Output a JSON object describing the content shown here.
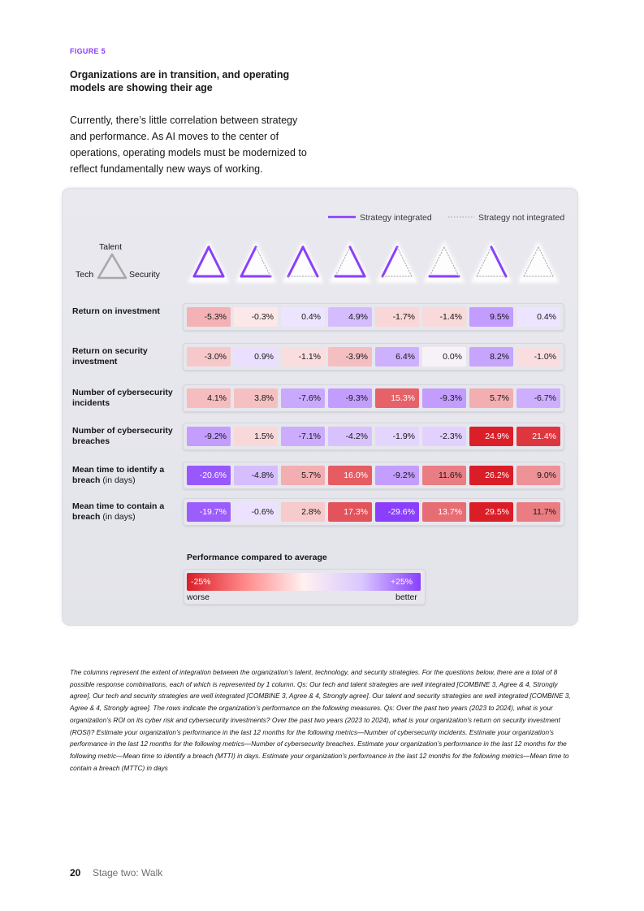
{
  "figure_label": "FIGURE 5",
  "title": "Organizations are in transition, and operating models are showing their age",
  "intro": "Currently, there’s little correlation between strategy and performance. As AI moves to the center of operations, operating models must be modernized to reflect fundamentally new ways of working.",
  "legend": {
    "integrated": "Strategy integrated",
    "not_integrated": "Strategy not integrated"
  },
  "triangle_key": {
    "top": "Talent",
    "left": "Tech",
    "right": "Security"
  },
  "colors": {
    "accent": "#8a3ffc",
    "worse": "#da1e28",
    "better": "#8a3ffc",
    "neutral_line": "#a8a8a8"
  },
  "chart_data": {
    "type": "heatmap",
    "title": "Performance compared to average",
    "columns": [
      {
        "tech_talent": true,
        "tech_security": true,
        "talent_security": true
      },
      {
        "tech_talent": true,
        "tech_security": true,
        "talent_security": false
      },
      {
        "tech_talent": true,
        "tech_security": false,
        "talent_security": true
      },
      {
        "tech_talent": false,
        "tech_security": true,
        "talent_security": true
      },
      {
        "tech_talent": true,
        "tech_security": false,
        "talent_security": false
      },
      {
        "tech_talent": false,
        "tech_security": true,
        "talent_security": false
      },
      {
        "tech_talent": false,
        "tech_security": false,
        "talent_security": true
      },
      {
        "tech_talent": false,
        "tech_security": false,
        "talent_security": false
      }
    ],
    "rows": [
      {
        "label": "Return on investment",
        "unit": "",
        "lower_is_better": false,
        "values": [
          -5.3,
          -0.3,
          0.4,
          4.9,
          -1.7,
          -1.4,
          9.5,
          0.4
        ]
      },
      {
        "label": "Return on security investment",
        "unit": "",
        "lower_is_better": false,
        "values": [
          -3.0,
          0.9,
          -1.1,
          -3.9,
          6.4,
          0.0,
          8.2,
          -1.0
        ]
      },
      {
        "label": "Number of cybersecurity incidents",
        "unit": "",
        "lower_is_better": true,
        "values": [
          4.1,
          3.8,
          -7.6,
          -9.3,
          15.3,
          -9.3,
          5.7,
          -6.7
        ]
      },
      {
        "label": "Number of cybersecurity breaches",
        "unit": "",
        "lower_is_better": true,
        "values": [
          -9.2,
          1.5,
          -7.1,
          -4.2,
          -1.9,
          -2.3,
          24.9,
          21.4
        ]
      },
      {
        "label": "Mean time to identify a breach",
        "unit": "(in days)",
        "lower_is_better": true,
        "values": [
          -20.6,
          -4.8,
          5.7,
          16.0,
          -9.2,
          11.6,
          26.2,
          9.0
        ]
      },
      {
        "label": "Mean time to contain a breach",
        "unit": "(in days)",
        "lower_is_better": true,
        "values": [
          -19.7,
          -0.6,
          2.8,
          17.3,
          -29.6,
          13.7,
          29.5,
          11.7
        ]
      }
    ],
    "scale": {
      "min_label": "-25%",
      "max_label": "+25%",
      "worse_label": "worse",
      "better_label": "better",
      "range": [
        -25,
        25
      ]
    }
  },
  "footnote": "The columns represent the extent of integration between the organization’s talent, technology, and security strategies. For the questions below, there are a total of 8 possible response combinations, each of which is represented by 1 column. Qs: Our tech and talent strategies are well integrated [COMBINE 3, Agree & 4, Strongly agree]. Our tech and security strategies are well integrated [COMBINE 3, Agree & 4, Strongly agree]. Our talent and security strategies are well integrated [COMBINE 3, Agree & 4, Strongly agree]. The rows indicate the organization’s performance on the following measures. Qs: Over the past two years (2023 to 2024), what is your organization’s ROI on its cyber risk and cybersecurity investments? Over the past two years (2023 to 2024), what is your organization’s return on security investment (ROSI)? Estimate your organization’s performance in the last 12 months for the following metrics—Number of cybersecurity incidents. Estimate your organization’s performance in the last 12 months for the following metrics—Number of cybersecurity breaches. Estimate your organization’s performance in the last 12 months for the following metric—Mean time to identify a breach (MTTI) in days. Estimate your organization’s performance in the last 12 months for the following metrics—Mean time to contain a breach (MTTC) in days",
  "footer": {
    "page": "20",
    "section": "Stage two: Walk"
  }
}
